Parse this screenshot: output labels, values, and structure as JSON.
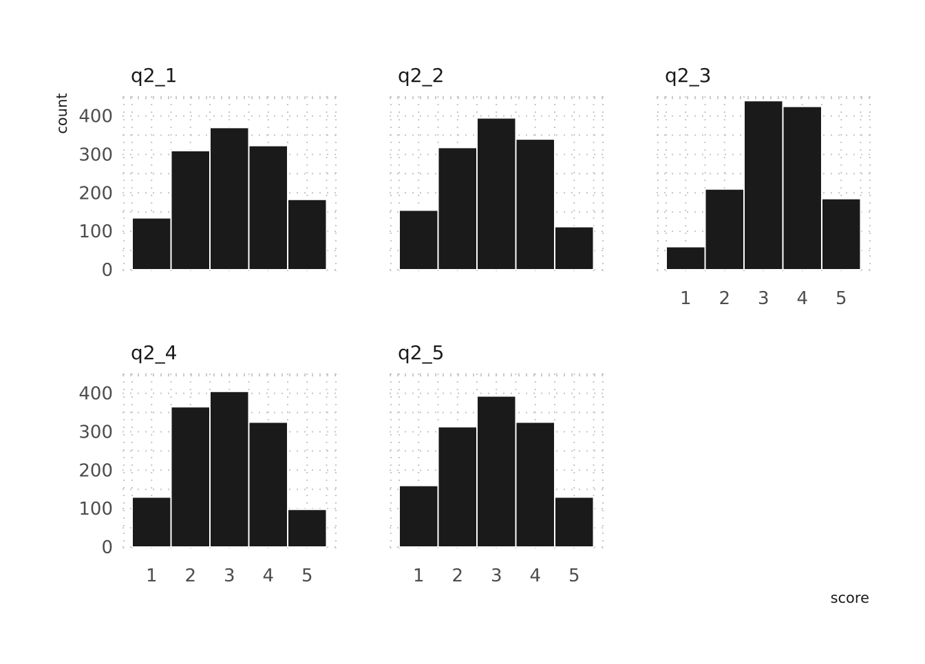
{
  "chart_data": {
    "type": "bar",
    "x_label": "score",
    "y_label": "count",
    "y_ticks": [
      "0",
      "100",
      "200",
      "300",
      "400"
    ],
    "x_ticks": [
      "1",
      "2",
      "3",
      "4",
      "5"
    ],
    "ylim": [
      0,
      450
    ],
    "grid": true,
    "facets": [
      {
        "title": "q2_1",
        "categories": [
          1,
          2,
          3,
          4,
          5
        ],
        "values": [
          135,
          310,
          370,
          323,
          183
        ]
      },
      {
        "title": "q2_2",
        "categories": [
          1,
          2,
          3,
          4,
          5
        ],
        "values": [
          155,
          318,
          395,
          340,
          112
        ]
      },
      {
        "title": "q2_3",
        "categories": [
          1,
          2,
          3,
          4,
          5
        ],
        "values": [
          60,
          210,
          440,
          425,
          185
        ]
      },
      {
        "title": "q2_4",
        "categories": [
          1,
          2,
          3,
          4,
          5
        ],
        "values": [
          130,
          365,
          405,
          325,
          98
        ]
      },
      {
        "title": "q2_5",
        "categories": [
          1,
          2,
          3,
          4,
          5
        ],
        "values": [
          160,
          313,
          393,
          325,
          130
        ]
      }
    ]
  }
}
